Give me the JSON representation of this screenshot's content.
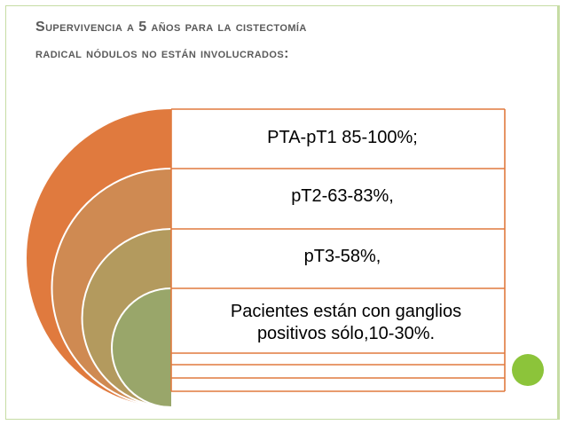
{
  "title": {
    "line1": "Supervivencia a 5 años para la cistectomía",
    "line2": "radical nódulos no están involucrados:"
  },
  "levels": [
    {
      "text": "PTA-pT1 85-100%;",
      "color": "#e07a3e"
    },
    {
      "text": "pT2-63-83%,",
      "color": "#cf8a52"
    },
    {
      "text": "pT3-58%,",
      "color": "#b39a5e"
    },
    {
      "text": "Pacientes están con ganglios positivos sólo,10-30%.",
      "color": "#99a66a"
    }
  ],
  "colors": {
    "frame": "#c6dca4",
    "divider": "#e07a3e",
    "accent_dot": "#8cc43a",
    "title_text": "#5a5a5a"
  }
}
